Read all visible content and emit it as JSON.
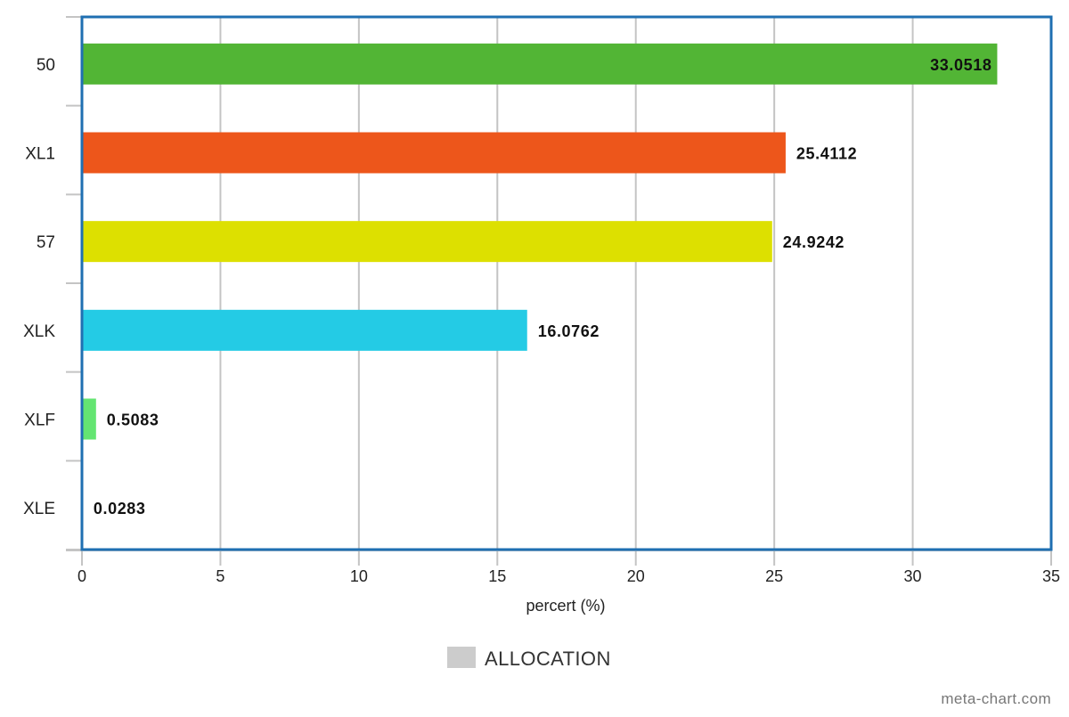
{
  "chart_data": {
    "type": "bar",
    "orientation": "horizontal",
    "categories": [
      "50",
      "XL1",
      "57",
      "XLK",
      "XLF",
      "XLE"
    ],
    "series": [
      {
        "name": "ALLOCATION",
        "values": [
          33.0518,
          25.4112,
          24.9242,
          16.0762,
          0.5083,
          0.0283
        ],
        "value_labels": [
          "33.0518",
          "25.4112",
          "24.9242",
          "16.0762",
          "0.5083",
          "0.0283"
        ],
        "colors": [
          "#52b535",
          "#ed561b",
          "#dde000",
          "#24cbe5",
          "#64e572",
          "#ff9655"
        ]
      }
    ],
    "xlabel": "percert (%)",
    "xlim": [
      0,
      35
    ],
    "xticks": [
      0,
      5,
      10,
      15,
      20,
      25,
      30,
      35
    ],
    "xtick_labels": [
      "0",
      "5",
      "10",
      "15",
      "20",
      "25",
      "30",
      "35"
    ],
    "grid": true,
    "legend": {
      "position": "bottom-center",
      "label": "ALLOCATION",
      "swatch_color": "#cccccc"
    },
    "plot_border_color": "#1f6fb2"
  },
  "watermark": "meta-chart.com"
}
